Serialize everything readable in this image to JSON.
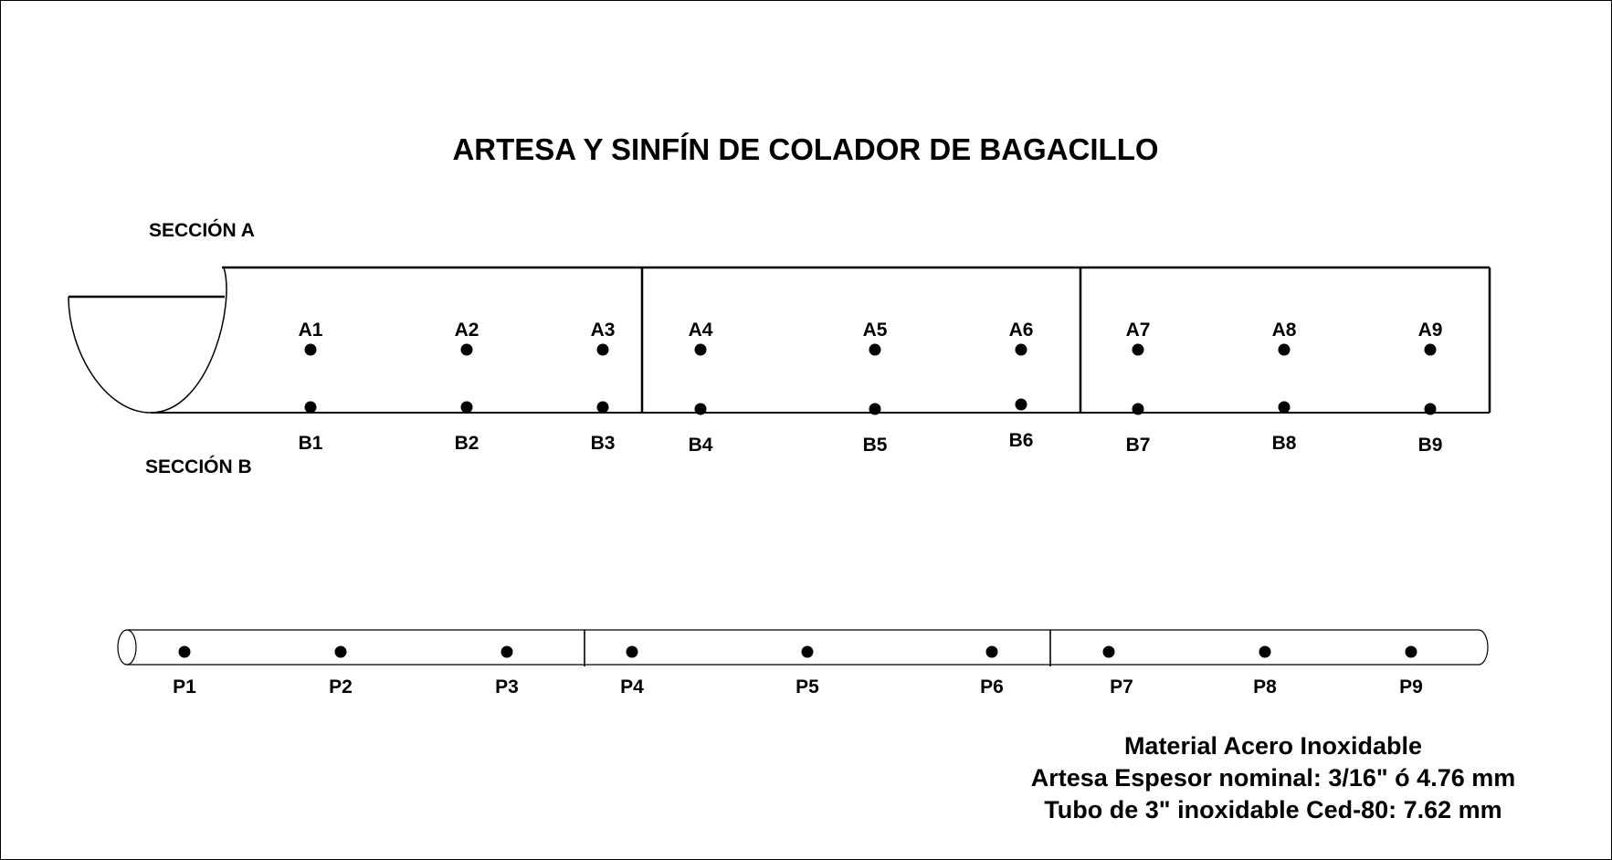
{
  "title": "ARTESA  Y SINFÍN DE COLADOR DE BAGACILLO",
  "section_a_label": "SECCIÓN A",
  "section_b_label": "SECCIÓN B",
  "points_a": [
    "A1",
    "A2",
    "A3",
    "A4",
    "A5",
    "A6",
    "A7",
    "A8",
    "A9"
  ],
  "points_b": [
    "B1",
    "B2",
    "B3",
    "B4",
    "B5",
    "B6",
    "B7",
    "B8",
    "B9"
  ],
  "points_p": [
    "P1",
    "P2",
    "P3",
    "P4",
    "P5",
    "P6",
    "P7",
    "P8",
    "P9"
  ],
  "notes": [
    "Material Acero Inoxidable",
    "Artesa Espesor nominal: 3/16\" ó 4.76 mm",
    "Tubo de 3\" inoxidable Ced-80: 7.62 mm"
  ]
}
